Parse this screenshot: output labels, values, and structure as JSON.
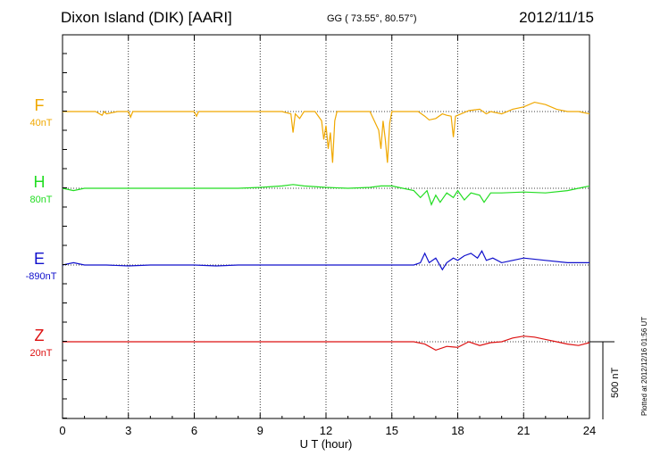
{
  "header": {
    "station": "Dixon Island (DIK)  [AARI]",
    "coords": "GG ( 73.55°,  80.57°)",
    "date": "2012/11/15"
  },
  "footer": {
    "plotted": "Plotted at 2012/12/16 01:56 UT"
  },
  "chart_data": {
    "type": "line",
    "xlabel": "U T (hour)",
    "xlim": [
      0,
      24
    ],
    "x_ticks": [
      "0",
      "3",
      "6",
      "9",
      "12",
      "15",
      "18",
      "21",
      "24"
    ],
    "grid": "vertical dotted at every 3 hours; dotted baseline per component",
    "scale_bar": "500 nT",
    "series": [
      {
        "name": "F",
        "baseline_label": "40nT",
        "color": "#f0a800",
        "x": [
          0,
          0.5,
          1,
          1.5,
          1.8,
          1.9,
          2,
          2.5,
          3,
          3.1,
          3.2,
          3.5,
          4,
          4.5,
          5,
          5.5,
          6,
          6.1,
          6.2,
          6.5,
          7,
          7.5,
          8,
          8.5,
          9,
          9.5,
          10,
          10.4,
          10.5,
          10.6,
          10.8,
          11,
          11.5,
          11.8,
          11.9,
          12,
          12.1,
          12.2,
          12.3,
          12.4,
          12.5,
          13,
          13.5,
          14,
          14.4,
          14.5,
          14.6,
          14.7,
          14.8,
          14.9,
          15,
          15.5,
          16,
          16.2,
          16.5,
          16.7,
          17,
          17.3,
          17.5,
          17.7,
          17.8,
          17.9,
          18,
          18.5,
          19,
          19.3,
          19.5,
          20,
          20.5,
          21,
          21.5,
          22,
          22.5,
          23,
          23.5,
          24
        ],
        "values": [
          0,
          0,
          0,
          0,
          -8,
          0,
          -5,
          0,
          0,
          -12,
          0,
          0,
          0,
          0,
          0,
          0,
          0,
          -10,
          0,
          0,
          0,
          0,
          0,
          0,
          0,
          0,
          0,
          -5,
          -45,
          -5,
          -15,
          0,
          0,
          -20,
          -60,
          -30,
          -80,
          -45,
          -110,
          -20,
          0,
          0,
          0,
          0,
          -40,
          -80,
          -20,
          -60,
          -110,
          -25,
          0,
          0,
          0,
          0,
          -10,
          -18,
          -15,
          -5,
          -8,
          -10,
          -55,
          -10,
          -8,
          2,
          5,
          -5,
          0,
          -5,
          5,
          10,
          20,
          15,
          5,
          0,
          0,
          -5
        ]
      },
      {
        "name": "H",
        "baseline_label": "80nT",
        "color": "#22dd22",
        "x": [
          0,
          0.5,
          1,
          2,
          3,
          4,
          5,
          6,
          7,
          8,
          9,
          10,
          10.5,
          11,
          12,
          13,
          14,
          14.5,
          15,
          15.5,
          16,
          16.3,
          16.6,
          16.8,
          17,
          17.2,
          17.5,
          17.8,
          18,
          18.3,
          18.6,
          19,
          19.2,
          19.5,
          20,
          21,
          22,
          23,
          23.5,
          24
        ],
        "values": [
          0,
          -5,
          0,
          0,
          0,
          0,
          0,
          0,
          0,
          0,
          2,
          5,
          8,
          5,
          2,
          0,
          2,
          5,
          5,
          0,
          -5,
          -20,
          -5,
          -35,
          -15,
          -30,
          -10,
          -20,
          -5,
          -25,
          -10,
          -15,
          -30,
          -10,
          -10,
          -8,
          -10,
          -5,
          0,
          5
        ]
      },
      {
        "name": "E",
        "baseline_label": "-890nT",
        "color": "#1010cc",
        "x": [
          0,
          0.5,
          1,
          2,
          3,
          4,
          5,
          6,
          7,
          8,
          9,
          10,
          11,
          12,
          13,
          14,
          15,
          16,
          16.3,
          16.5,
          16.7,
          17,
          17.3,
          17.5,
          17.8,
          18,
          18.3,
          18.6,
          18.9,
          19.1,
          19.3,
          19.6,
          20,
          20.5,
          21,
          22,
          23,
          24
        ],
        "values": [
          0,
          5,
          0,
          0,
          -2,
          0,
          0,
          0,
          -2,
          0,
          0,
          0,
          0,
          0,
          0,
          0,
          0,
          0,
          5,
          25,
          5,
          15,
          -10,
          5,
          15,
          10,
          20,
          25,
          15,
          30,
          10,
          15,
          5,
          10,
          15,
          10,
          5,
          5
        ]
      },
      {
        "name": "Z",
        "baseline_label": "20nT",
        "color": "#dd1111",
        "x": [
          0,
          1,
          2,
          3,
          4,
          5,
          6,
          7,
          8,
          9,
          10,
          11,
          12,
          13,
          14,
          15,
          16,
          16.5,
          17,
          17.5,
          18,
          18.5,
          19,
          19.5,
          20,
          20.5,
          21,
          21.5,
          22,
          22.5,
          23,
          23.5,
          24
        ],
        "values": [
          0,
          0,
          0,
          0,
          0,
          0,
          0,
          0,
          0,
          0,
          0,
          0,
          0,
          0,
          0,
          0,
          0,
          -5,
          -18,
          -10,
          -12,
          0,
          -8,
          -2,
          0,
          8,
          12,
          10,
          5,
          0,
          -5,
          -8,
          -2
        ]
      }
    ]
  }
}
